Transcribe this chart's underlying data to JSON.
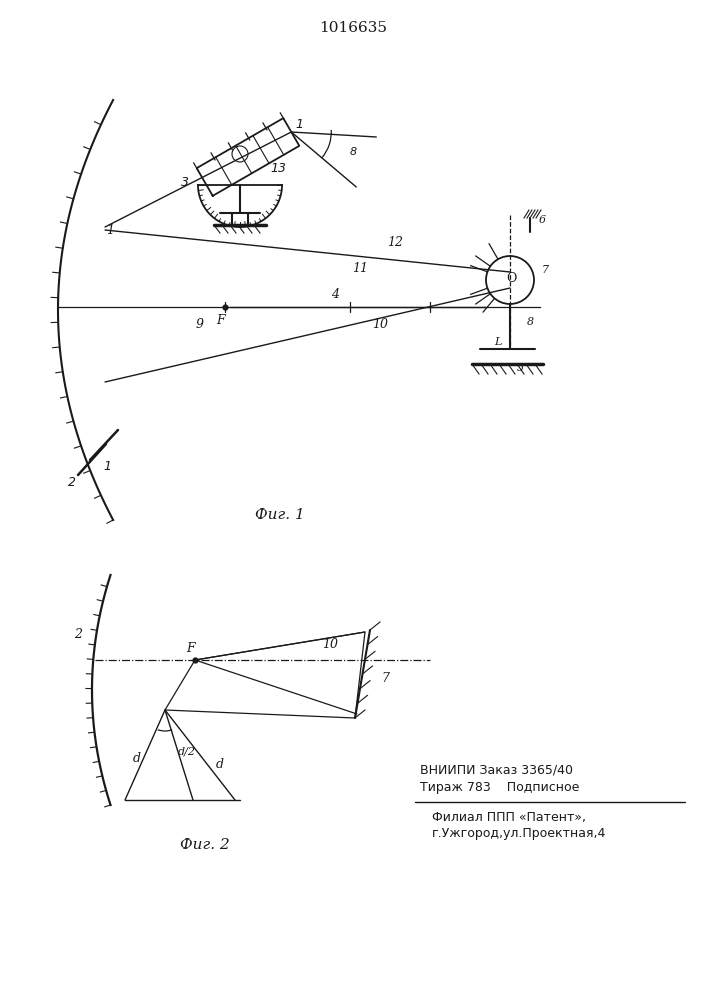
{
  "title": "1016635",
  "bg_color": "#ffffff",
  "line_color": "#1a1a1a",
  "footer_line1": "ВНИИПИ Заказ 3365/40",
  "footer_line2": "Тираж 783    Подписное",
  "footer_line3": "Филиал ППП «Патент»,",
  "footer_line4": "г.Ужгород,ул.Проектная,4",
  "fig1_label": "Фиг. 1",
  "fig2_label": "Фиг. 2"
}
